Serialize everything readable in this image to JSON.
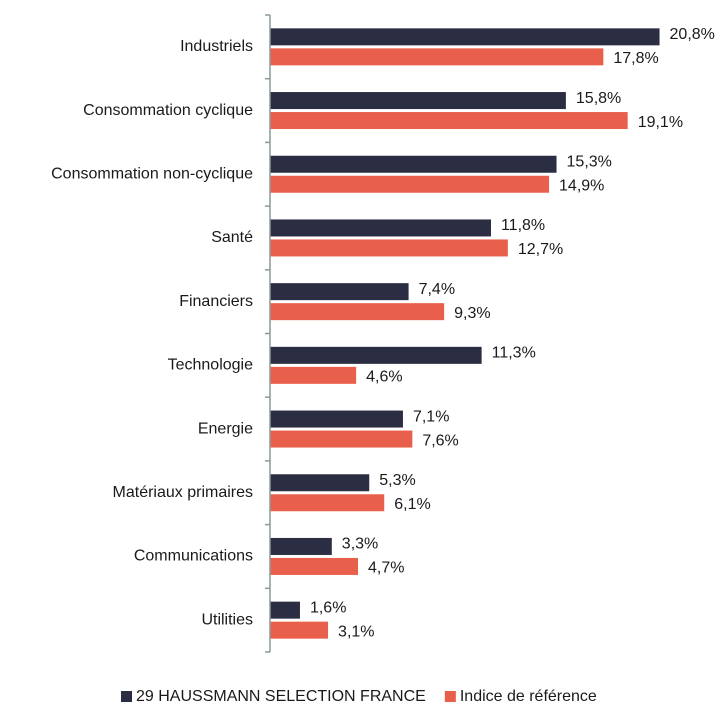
{
  "chart_data": {
    "type": "hbar",
    "categories": [
      "Industriels",
      "Consommation cyclique",
      "Consommation non-cyclique",
      "Santé",
      "Financiers",
      "Technologie",
      "Energie",
      "Matériaux primaires",
      "Communications",
      "Utilities"
    ],
    "series": [
      {
        "name": "29 HAUSSMANN SELECTION FRANCE",
        "color": "#2b2d42",
        "values": [
          20.8,
          15.8,
          15.3,
          11.8,
          7.4,
          11.3,
          7.1,
          5.3,
          3.3,
          1.6
        ],
        "value_labels": [
          "20,8%",
          "15,8%",
          "15,3%",
          "11,8%",
          "7,4%",
          "11,3%",
          "7,1%",
          "5,3%",
          "3,3%",
          "1,6%"
        ]
      },
      {
        "name": "Indice de référence",
        "color": "#e8604c",
        "values": [
          17.8,
          19.1,
          14.9,
          12.7,
          9.3,
          4.6,
          7.6,
          6.1,
          4.7,
          3.1
        ],
        "value_labels": [
          "17,8%",
          "19,1%",
          "14,9%",
          "12,7%",
          "9,3%",
          "4,6%",
          "7,6%",
          "6,1%",
          "4,7%",
          "3,1%"
        ]
      }
    ],
    "xlim": [
      0,
      22
    ],
    "legend": "bottom"
  }
}
